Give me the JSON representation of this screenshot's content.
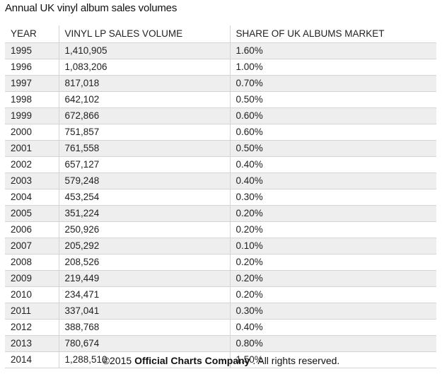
{
  "title": "Annual UK vinyl album sales volumes",
  "table": {
    "headers": [
      "YEAR",
      "VINYL LP SALES VOLUME",
      "SHARE OF UK ALBUMS MARKET"
    ],
    "rows": [
      [
        "1995",
        "1,410,905",
        "1.60%"
      ],
      [
        "1996",
        "1,083,206",
        "1.00%"
      ],
      [
        "1997",
        "817,018",
        "0.70%"
      ],
      [
        "1998",
        "642,102",
        "0.50%"
      ],
      [
        "1999",
        "672,866",
        "0.60%"
      ],
      [
        "2000",
        "751,857",
        "0.60%"
      ],
      [
        "2001",
        "761,558",
        "0.50%"
      ],
      [
        "2002",
        "657,127",
        "0.40%"
      ],
      [
        "2003",
        "579,248",
        "0.40%"
      ],
      [
        "2004",
        "453,254",
        "0.30%"
      ],
      [
        "2005",
        "351,224",
        "0.20%"
      ],
      [
        "2006",
        "250,926",
        "0.20%"
      ],
      [
        "2007",
        "205,292",
        "0.10%"
      ],
      [
        "2008",
        "208,526",
        "0.20%"
      ],
      [
        "2009",
        "219,449",
        "0.20%"
      ],
      [
        "2010",
        "234,471",
        "0.20%"
      ],
      [
        "2011",
        "337,041",
        "0.30%"
      ],
      [
        "2012",
        "388,768",
        "0.40%"
      ],
      [
        "2013",
        "780,674",
        "0.80%"
      ],
      [
        "2014",
        "1,288,510",
        "1.50%"
      ]
    ]
  },
  "footer": {
    "prefix": "©2015 ",
    "brand": "Official Charts Company",
    "suffix": " . All rights reserved."
  }
}
